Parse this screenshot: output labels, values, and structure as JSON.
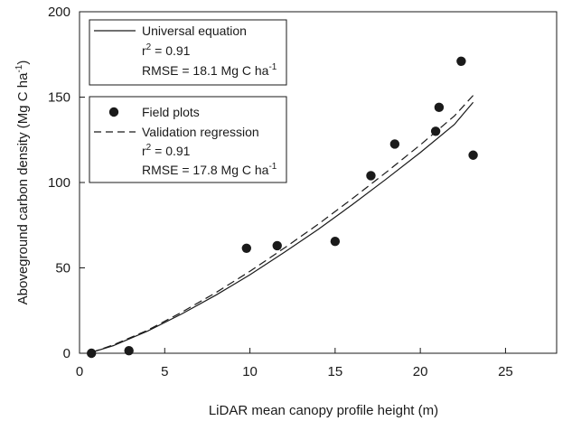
{
  "chart_data": {
    "type": "scatter",
    "title": "",
    "xlabel": "LiDAR mean canopy profile height (m)",
    "ylabel_main": "Aboveground carbon density (Mg C ha",
    "ylabel_sup": "-1",
    "ylabel_close": ")",
    "xlim": [
      0,
      28
    ],
    "ylim": [
      0,
      200
    ],
    "x_ticks": [
      0,
      5,
      10,
      15,
      20,
      25
    ],
    "y_ticks": [
      0,
      50,
      100,
      150,
      200
    ],
    "grid": false,
    "series": [
      {
        "name": "Field plots",
        "kind": "scatter",
        "x": [
          0.7,
          2.9,
          9.8,
          11.6,
          15.0,
          17.1,
          18.5,
          20.9,
          21.1,
          22.4,
          23.1
        ],
        "y": [
          0,
          1.5,
          61.5,
          63,
          65.5,
          104,
          122.5,
          130,
          144,
          171,
          116
        ]
      },
      {
        "name": "Universal equation",
        "kind": "line",
        "style": "solid",
        "x": [
          0.7,
          2,
          4,
          6,
          8,
          10,
          12,
          14,
          16,
          18,
          20,
          22,
          23.1
        ],
        "y": [
          0.5,
          4.5,
          13,
          23,
          34,
          46,
          59,
          72.5,
          87,
          102,
          117.5,
          134,
          147
        ]
      },
      {
        "name": "Validation regression",
        "kind": "line",
        "style": "dashed",
        "x": [
          0.7,
          2,
          4,
          6,
          8,
          10,
          12,
          14,
          16,
          18,
          20,
          22,
          23.1
        ],
        "y": [
          0.5,
          5,
          13.5,
          24,
          35.5,
          48,
          61.5,
          75.5,
          90.5,
          106,
          122,
          139,
          151
        ]
      }
    ],
    "legend_boxes": [
      {
        "location": "top-left",
        "entries": [
          {
            "marker": "solid-line",
            "label": "Universal equation"
          },
          {
            "stat_r2": "r",
            "stat_r2_sup": "2",
            "stat_r2_value": " = 0.91"
          },
          {
            "stat_rmse": "RMSE = 18.1 Mg C ha",
            "stat_rmse_sup": "-1"
          }
        ]
      },
      {
        "location": "upper-left",
        "entries": [
          {
            "marker": "dot",
            "label": "Field plots"
          },
          {
            "marker": "dashed-line",
            "label": "Validation regression"
          },
          {
            "stat_r2": "r",
            "stat_r2_sup": "2",
            "stat_r2_value": " = 0.91"
          },
          {
            "stat_rmse": "RMSE = 17.8 Mg C ha",
            "stat_rmse_sup": "-1"
          }
        ]
      }
    ],
    "colors": {
      "ink": "#1a1a1a",
      "background": "#ffffff"
    }
  }
}
